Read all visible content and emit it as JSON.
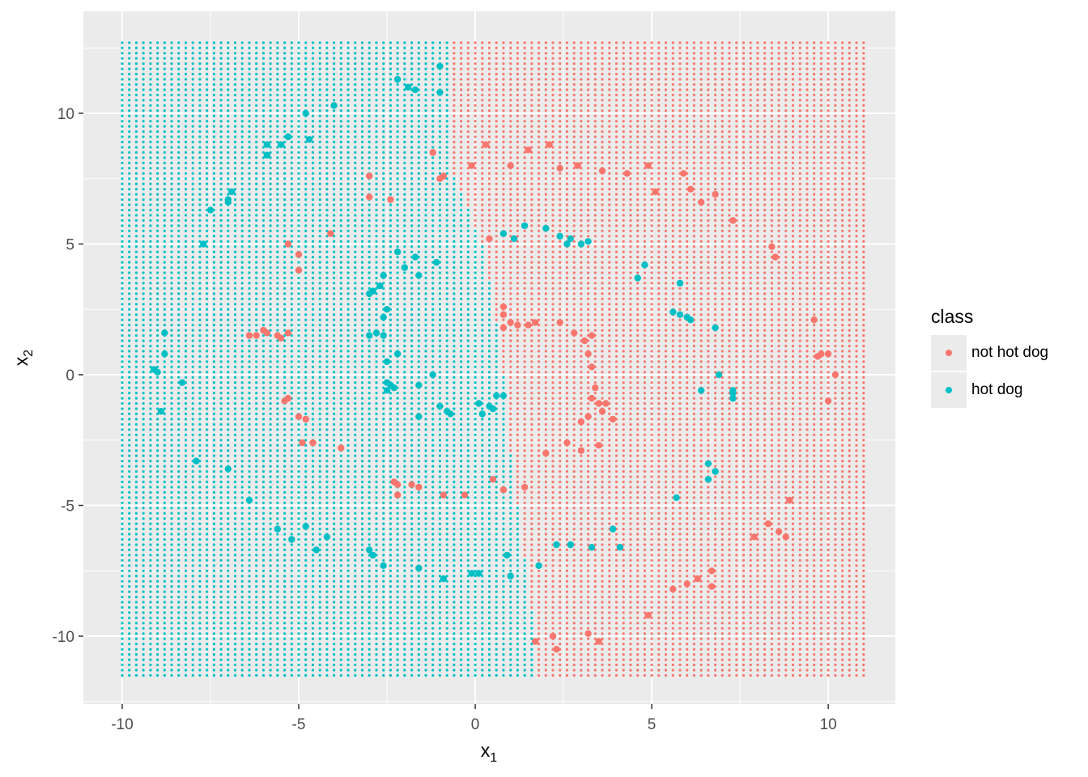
{
  "chart_data": {
    "type": "scatter",
    "xlabel": "x",
    "xlabel_sub": "1",
    "ylabel": "x",
    "ylabel_sub": "2",
    "xlim": [
      -11.1,
      11.9
    ],
    "ylim": [
      -12.6,
      13.9
    ],
    "x_ticks": [
      -10,
      -5,
      0,
      5,
      10
    ],
    "y_ticks": [
      -10,
      -5,
      0,
      5,
      10
    ],
    "x_tick_labels": [
      "-10",
      "-5",
      "0",
      "5",
      "10"
    ],
    "y_tick_labels": [
      "-10",
      "-5",
      "0",
      "5",
      "10"
    ],
    "grid": true,
    "legend": {
      "title": "class",
      "position": "right",
      "entries": [
        "not hot dog",
        "hot dog"
      ]
    },
    "colors": {
      "not hot dog": "#F8766D",
      "hot dog": "#00BFC4",
      "panel": "#EBEBEB",
      "gridline": "#FFFFFF"
    },
    "decision_grid": {
      "description_of_layer": "dense grid of small points colored by predicted class",
      "x_range": [
        -10,
        11
      ],
      "y_range": [
        -11.6,
        12.7
      ],
      "step": 0.2,
      "boundary_x_at_y": [
        [
          12.7,
          -0.7
        ],
        [
          8.0,
          -0.7
        ],
        [
          5.0,
          0.2
        ],
        [
          2.0,
          0.6
        ],
        [
          0.0,
          0.8
        ],
        [
          -3.0,
          1.0
        ],
        [
          -6.0,
          1.3
        ],
        [
          -9.0,
          1.6
        ],
        [
          -11.6,
          1.8
        ]
      ]
    },
    "series": [
      {
        "name": "not hot dog",
        "points": [
          [
            -1.2,
            8.5
          ],
          [
            -0.9,
            7.6
          ],
          [
            -1.0,
            7.5
          ],
          [
            0.3,
            8.8
          ],
          [
            -0.1,
            8.0
          ],
          [
            1.5,
            8.6
          ],
          [
            2.1,
            8.8
          ],
          [
            1.0,
            8.0
          ],
          [
            2.4,
            7.9
          ],
          [
            2.9,
            8.0
          ],
          [
            3.6,
            7.8
          ],
          [
            4.3,
            7.7
          ],
          [
            4.9,
            8.0
          ],
          [
            5.1,
            7.0
          ],
          [
            5.9,
            7.7
          ],
          [
            6.1,
            7.1
          ],
          [
            6.4,
            6.6
          ],
          [
            6.8,
            6.9
          ],
          [
            7.3,
            5.9
          ],
          [
            8.4,
            4.9
          ],
          [
            8.5,
            4.5
          ],
          [
            0.4,
            5.2
          ],
          [
            -3.0,
            7.6
          ],
          [
            -3.0,
            6.8
          ],
          [
            -2.4,
            6.7
          ],
          [
            -4.1,
            5.4
          ],
          [
            -5.3,
            5.0
          ],
          [
            -5.0,
            4.6
          ],
          [
            -5.0,
            4.0
          ],
          [
            0.8,
            2.6
          ],
          [
            0.8,
            2.3
          ],
          [
            1.0,
            2.0
          ],
          [
            1.2,
            1.9
          ],
          [
            1.5,
            1.9
          ],
          [
            0.8,
            1.8
          ],
          [
            1.7,
            2.0
          ],
          [
            2.4,
            2.0
          ],
          [
            2.8,
            1.6
          ],
          [
            3.3,
            1.5
          ],
          [
            3.1,
            1.3
          ],
          [
            3.2,
            0.8
          ],
          [
            3.3,
            0.3
          ],
          [
            3.4,
            -0.5
          ],
          [
            3.3,
            -0.9
          ],
          [
            3.5,
            -1.1
          ],
          [
            3.7,
            -1.1
          ],
          [
            3.6,
            -1.4
          ],
          [
            3.2,
            -1.6
          ],
          [
            3.0,
            -1.8
          ],
          [
            3.9,
            -1.7
          ],
          [
            3.5,
            -2.7
          ],
          [
            3.0,
            -2.9
          ],
          [
            2.6,
            -2.6
          ],
          [
            2.0,
            -3.0
          ],
          [
            1.4,
            -4.3
          ],
          [
            0.5,
            -4.0
          ],
          [
            0.8,
            -4.4
          ],
          [
            -0.3,
            -4.6
          ],
          [
            -0.9,
            -4.6
          ],
          [
            -1.6,
            -4.3
          ],
          [
            -2.2,
            -4.6
          ],
          [
            -2.2,
            -4.2
          ],
          [
            -1.8,
            -4.2
          ],
          [
            -2.3,
            -4.1
          ],
          [
            9.6,
            2.1
          ],
          [
            9.7,
            0.7
          ],
          [
            9.8,
            0.8
          ],
          [
            10.0,
            0.8
          ],
          [
            10.2,
            0.0
          ],
          [
            10.0,
            -1.0
          ],
          [
            8.9,
            -4.8
          ],
          [
            8.3,
            -5.7
          ],
          [
            8.6,
            -6.0
          ],
          [
            8.8,
            -6.2
          ],
          [
            7.9,
            -6.2
          ],
          [
            6.7,
            -7.5
          ],
          [
            6.3,
            -7.8
          ],
          [
            6.0,
            -8.0
          ],
          [
            5.6,
            -8.2
          ],
          [
            6.7,
            -8.1
          ],
          [
            4.9,
            -9.2
          ],
          [
            3.5,
            -10.2
          ],
          [
            3.2,
            -9.9
          ],
          [
            2.3,
            -10.5
          ],
          [
            2.2,
            -10.0
          ],
          [
            1.7,
            -10.2
          ],
          [
            -6.2,
            1.5
          ],
          [
            -5.9,
            1.6
          ],
          [
            -5.5,
            1.4
          ],
          [
            -5.3,
            1.6
          ],
          [
            -5.6,
            1.5
          ],
          [
            -5.4,
            -1.0
          ],
          [
            -5.3,
            -0.9
          ],
          [
            -5.0,
            -1.6
          ],
          [
            -4.8,
            -1.7
          ],
          [
            -4.9,
            -2.6
          ],
          [
            -4.6,
            -2.6
          ],
          [
            -3.8,
            -2.8
          ],
          [
            -6.4,
            1.5
          ],
          [
            -6.0,
            1.7
          ]
        ]
      },
      {
        "name": "hot dog",
        "points": [
          [
            -2.2,
            11.3
          ],
          [
            -1.9,
            11.0
          ],
          [
            -1.7,
            10.9
          ],
          [
            -1.0,
            10.8
          ],
          [
            -1.0,
            11.8
          ],
          [
            -4.0,
            10.3
          ],
          [
            -4.8,
            10.0
          ],
          [
            -4.7,
            9.0
          ],
          [
            -5.3,
            9.1
          ],
          [
            -5.5,
            8.8
          ],
          [
            -5.9,
            8.8
          ],
          [
            -5.9,
            8.4
          ],
          [
            -6.9,
            7.0
          ],
          [
            -7.0,
            6.6
          ],
          [
            -7.0,
            6.7
          ],
          [
            -7.5,
            6.3
          ],
          [
            -7.7,
            5.0
          ],
          [
            -2.2,
            4.7
          ],
          [
            -2.0,
            4.1
          ],
          [
            -1.7,
            4.5
          ],
          [
            -1.6,
            3.8
          ],
          [
            -1.1,
            4.3
          ],
          [
            -2.6,
            3.8
          ],
          [
            -2.7,
            3.4
          ],
          [
            -2.9,
            3.2
          ],
          [
            -3.0,
            3.1
          ],
          [
            -2.5,
            2.5
          ],
          [
            -2.6,
            2.2
          ],
          [
            -2.8,
            1.6
          ],
          [
            -3.0,
            1.5
          ],
          [
            -2.6,
            1.5
          ],
          [
            -2.2,
            0.8
          ],
          [
            -2.5,
            0.5
          ],
          [
            -2.5,
            -0.3
          ],
          [
            -2.5,
            -0.6
          ],
          [
            -2.4,
            -0.4
          ],
          [
            -2.3,
            -0.5
          ],
          [
            -1.6,
            -0.4
          ],
          [
            -1.6,
            -1.6
          ],
          [
            -1.0,
            -1.2
          ],
          [
            -0.8,
            -1.4
          ],
          [
            -0.7,
            -1.5
          ],
          [
            0.1,
            -1.1
          ],
          [
            0.2,
            -1.5
          ],
          [
            0.4,
            -1.2
          ],
          [
            0.5,
            -1.3
          ],
          [
            0.6,
            -0.8
          ],
          [
            0.8,
            -0.8
          ],
          [
            1.4,
            5.7
          ],
          [
            2.0,
            5.6
          ],
          [
            2.4,
            5.3
          ],
          [
            2.6,
            5.0
          ],
          [
            2.7,
            5.2
          ],
          [
            3.0,
            5.0
          ],
          [
            3.2,
            5.1
          ],
          [
            1.1,
            5.2
          ],
          [
            0.8,
            5.4
          ],
          [
            4.6,
            3.7
          ],
          [
            4.8,
            4.2
          ],
          [
            5.8,
            3.5
          ],
          [
            5.6,
            2.4
          ],
          [
            5.8,
            2.3
          ],
          [
            6.0,
            2.2
          ],
          [
            6.1,
            2.1
          ],
          [
            6.8,
            1.8
          ],
          [
            6.9,
            0.0
          ],
          [
            6.4,
            -0.6
          ],
          [
            7.3,
            -0.6
          ],
          [
            7.3,
            -0.9
          ],
          [
            7.3,
            -0.7
          ],
          [
            6.6,
            -3.4
          ],
          [
            6.8,
            -3.7
          ],
          [
            6.6,
            -4.0
          ],
          [
            5.7,
            -4.7
          ],
          [
            3.9,
            -5.9
          ],
          [
            4.1,
            -6.6
          ],
          [
            3.3,
            -6.6
          ],
          [
            2.7,
            -6.5
          ],
          [
            2.3,
            -6.5
          ],
          [
            1.8,
            -7.3
          ],
          [
            1.0,
            -7.7
          ],
          [
            0.9,
            -6.9
          ],
          [
            0.1,
            -7.6
          ],
          [
            -0.1,
            -7.6
          ],
          [
            -0.9,
            -7.8
          ],
          [
            -1.6,
            -7.4
          ],
          [
            -2.6,
            -7.3
          ],
          [
            -2.9,
            -6.9
          ],
          [
            -3.0,
            -6.7
          ],
          [
            -4.2,
            -6.2
          ],
          [
            -4.5,
            -6.7
          ],
          [
            -4.8,
            -5.8
          ],
          [
            -5.2,
            -6.3
          ],
          [
            -5.6,
            -5.9
          ],
          [
            -6.4,
            -4.8
          ],
          [
            -7.0,
            -3.6
          ],
          [
            -7.9,
            -3.3
          ],
          [
            -8.9,
            -1.4
          ],
          [
            -8.3,
            -0.3
          ],
          [
            -8.8,
            0.8
          ],
          [
            -8.8,
            1.6
          ],
          [
            -9.0,
            0.1
          ],
          [
            -9.1,
            0.2
          ],
          [
            -1.2,
            0.0
          ]
        ]
      }
    ]
  }
}
